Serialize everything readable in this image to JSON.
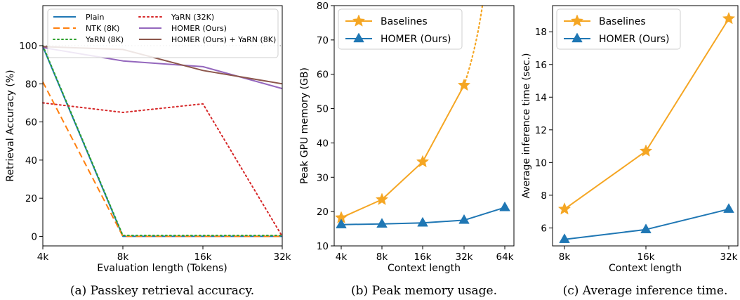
{
  "chart_data": [
    {
      "type": "line",
      "caption": "(a) Passkey retrieval accuracy.",
      "xlabel": "Evaluation length (Tokens)",
      "ylabel": "Retrieval Accuracy (%)",
      "categories": [
        "4k",
        "8k",
        "16k",
        "32k"
      ],
      "ylim": [
        -5,
        121
      ],
      "yticks": [
        0,
        20,
        40,
        60,
        80,
        100
      ],
      "reference_line": 100,
      "legend_placement": "top",
      "series": [
        {
          "name": "Plain",
          "values": [
            99.5,
            0,
            0,
            0
          ],
          "color": "#1f77b4",
          "dash": "solid"
        },
        {
          "name": "NTK (8K)",
          "values": [
            81,
            0,
            0,
            0
          ],
          "color": "#ff7f0e",
          "dash": "dashed"
        },
        {
          "name": "YaRN (8K)",
          "values": [
            100,
            0.5,
            0.5,
            0.5
          ],
          "color": "#2ca02c",
          "dash": "dotted"
        },
        {
          "name": "YaRN (32K)",
          "values": [
            70,
            65,
            69.5,
            0
          ],
          "color": "#d62728",
          "dash": "dotted"
        },
        {
          "name": "HOMER (Ours)",
          "values": [
            99,
            92,
            89,
            77.5
          ],
          "color": "#9467bd",
          "dash": "solid"
        },
        {
          "name": "HOMER (Ours) + YaRN (8K)",
          "values": [
            99.5,
            98,
            87,
            80
          ],
          "color": "#8c564b",
          "dash": "solid"
        }
      ]
    },
    {
      "type": "line",
      "caption": "(b) Peak memory usage.",
      "xlabel": "Context length",
      "ylabel": "Peak GPU memory (GB)",
      "categories": [
        "4k",
        "8k",
        "16k",
        "32k",
        "64k"
      ],
      "ylim": [
        10,
        80
      ],
      "yticks": [
        10,
        20,
        30,
        40,
        50,
        60,
        70,
        80
      ],
      "legend_placement": "top-left",
      "series": [
        {
          "name": "Baselines",
          "values": [
            18.2,
            23.5,
            34.5,
            56.8,
            null
          ],
          "extrapolated_to": 80,
          "color": "#f5a623",
          "marker": "star"
        },
        {
          "name": "HOMER (Ours)",
          "values": [
            16.2,
            16.4,
            16.7,
            17.5,
            21.2
          ],
          "color": "#1f77b4",
          "marker": "triangle"
        }
      ]
    },
    {
      "type": "line",
      "caption": "(c) Average inference time.",
      "xlabel": "Context length",
      "ylabel": "Average inference time (sec.)",
      "categories": [
        "8k",
        "16k",
        "32k"
      ],
      "ylim": [
        4.9,
        19.6
      ],
      "yticks": [
        6,
        8,
        10,
        12,
        14,
        16,
        18
      ],
      "legend_placement": "top-left",
      "series": [
        {
          "name": "Baselines",
          "values": [
            7.15,
            10.7,
            18.8
          ],
          "color": "#f5a623",
          "marker": "star"
        },
        {
          "name": "HOMER (Ours)",
          "values": [
            5.3,
            5.9,
            7.15
          ],
          "color": "#1f77b4",
          "marker": "triangle"
        }
      ]
    }
  ]
}
